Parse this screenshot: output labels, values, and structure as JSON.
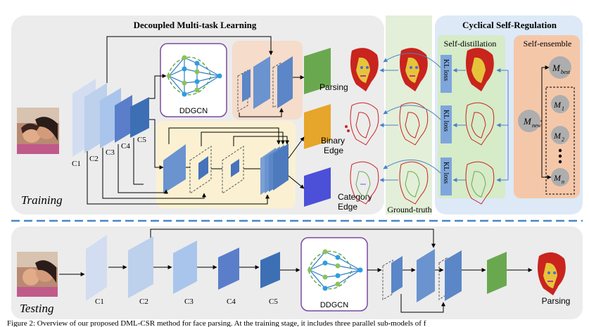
{
  "training": {
    "title": "Decoupled Multi-task Learning",
    "label": "Training",
    "stages": [
      "C1",
      "C2",
      "C3",
      "C4",
      "C5"
    ],
    "gcn_label": "DDGCN",
    "outputs": {
      "parsing": "Parsing",
      "binary_edge_line1": "Binary",
      "binary_edge_line2": "Edge",
      "category_edge_line1": "Category",
      "category_edge_line2": "Edge"
    }
  },
  "ground_truth": {
    "label": "Ground-truth"
  },
  "csr": {
    "title": "Cyclical Self-Regulation",
    "self_distillation": "Self-distillation",
    "self_ensemble": "Self-ensemble",
    "kl_loss": "KL loss",
    "m_new": "new",
    "m_best": "best",
    "m_items": [
      "1",
      "2",
      "n"
    ],
    "ellipsis": "•\n•\n•"
  },
  "testing": {
    "label": "Testing",
    "stages": [
      "C1",
      "C2",
      "C3",
      "C4",
      "C5"
    ],
    "gcn_label": "DDGCN",
    "output": "Parsing"
  },
  "caption": "Figure 2: Overview of our proposed DML-CSR method for face parsing. At the training stage, it includes three parallel sub-models of f"
}
